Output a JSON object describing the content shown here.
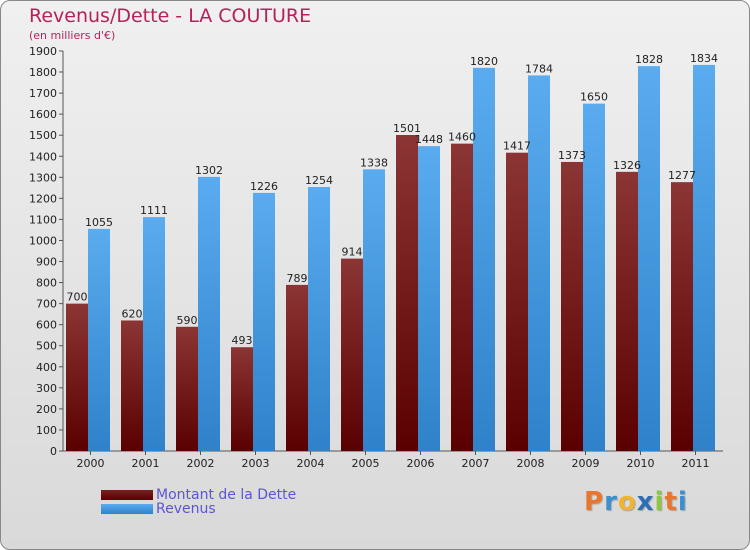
{
  "chart_data": {
    "type": "bar",
    "title": "Revenus/Dette - LA COUTURE",
    "subtitle": "(en milliers d'€)",
    "categories": [
      "2000",
      "2001",
      "2002",
      "2003",
      "2004",
      "2005",
      "2006",
      "2007",
      "2008",
      "2009",
      "2010",
      "2011"
    ],
    "series": [
      {
        "name": "Montant de la Dette",
        "color": "#7b1e1e",
        "values": [
          700,
          620,
          590,
          493,
          789,
          914,
          1501,
          1460,
          1417,
          1373,
          1326,
          1277
        ]
      },
      {
        "name": "Revenus",
        "color": "#4a9fe6",
        "values": [
          1055,
          1111,
          1302,
          1226,
          1254,
          1338,
          1448,
          1820,
          1784,
          1650,
          1828,
          1834
        ]
      }
    ],
    "yticks": [
      0,
      100,
      200,
      300,
      400,
      500,
      600,
      700,
      800,
      900,
      1000,
      1100,
      1200,
      1300,
      1400,
      1500,
      1600,
      1700,
      1800,
      1900
    ],
    "ylim": [
      0,
      1900
    ],
    "grid": false,
    "legend": "bottom-left"
  },
  "brand": {
    "letters": [
      "P",
      "r",
      "o",
      "x",
      "i",
      "t",
      "i"
    ],
    "colors": [
      "#e8762c",
      "#3a8fd1",
      "#f1b52d",
      "#2c6fb8",
      "#8dc63f",
      "#e8762c",
      "#3a8fd1"
    ]
  }
}
